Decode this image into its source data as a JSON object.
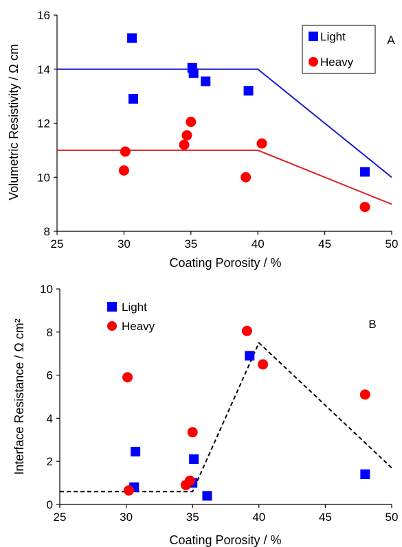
{
  "charts": [
    {
      "panel_label": "A",
      "xlabel": "Coating Porosity / %",
      "ylabel": "Volumetric Resistivity / Ω cm",
      "legend": {
        "placement": "top-right",
        "boxed": true
      },
      "x_ticks": [
        "25",
        "30",
        "35",
        "40",
        "45",
        "50"
      ],
      "y_ticks": [
        "8",
        "10",
        "12",
        "14",
        "16"
      ]
    },
    {
      "panel_label": "B",
      "xlabel": "Coating Porosity / %",
      "ylabel": "Interface Resistance / Ω cm²",
      "legend": {
        "placement": "top-left",
        "boxed": false
      },
      "x_ticks": [
        "25",
        "30",
        "35",
        "40",
        "45",
        "50"
      ],
      "y_ticks": [
        "0",
        "2",
        "4",
        "6",
        "8",
        "10"
      ]
    }
  ],
  "chart_data": [
    {
      "type": "scatter",
      "xlim": [
        25,
        50
      ],
      "ylim": [
        8,
        16
      ],
      "grid": false,
      "series": [
        {
          "name": "Light",
          "marker": "square",
          "color": "#0000ff",
          "points": [
            [
              30.6,
              15.15
            ],
            [
              30.7,
              12.9
            ],
            [
              35.1,
              14.05
            ],
            [
              35.2,
              13.85
            ],
            [
              36.1,
              13.55
            ],
            [
              39.3,
              13.2
            ],
            [
              48.0,
              10.2
            ]
          ]
        },
        {
          "name": "Heavy",
          "marker": "circle",
          "color": "#ff0000",
          "points": [
            [
              30.1,
              10.95
            ],
            [
              30.0,
              10.25
            ],
            [
              34.5,
              11.2
            ],
            [
              34.7,
              11.55
            ],
            [
              35.0,
              12.05
            ],
            [
              39.1,
              10.0
            ],
            [
              40.3,
              11.25
            ],
            [
              48.0,
              8.9
            ]
          ]
        }
      ],
      "lines": [
        {
          "color": "#1a1acc",
          "style": "solid",
          "points": [
            [
              25,
              14
            ],
            [
              40,
              14
            ],
            [
              50,
              10
            ]
          ]
        },
        {
          "color": "#dd2222",
          "style": "solid",
          "points": [
            [
              25,
              11
            ],
            [
              40,
              11
            ],
            [
              50,
              9
            ]
          ]
        }
      ]
    },
    {
      "type": "scatter",
      "xlim": [
        25,
        50
      ],
      "ylim": [
        0,
        10
      ],
      "grid": false,
      "series": [
        {
          "name": "Light",
          "marker": "square",
          "color": "#0000ff",
          "points": [
            [
              30.7,
              2.45
            ],
            [
              30.6,
              0.8
            ],
            [
              35.1,
              2.1
            ],
            [
              35.0,
              1.0
            ],
            [
              36.1,
              0.4
            ],
            [
              39.3,
              6.9
            ],
            [
              48.0,
              1.4
            ]
          ]
        },
        {
          "name": "Heavy",
          "marker": "circle",
          "color": "#ff0000",
          "points": [
            [
              30.1,
              5.9
            ],
            [
              30.2,
              0.65
            ],
            [
              34.5,
              0.9
            ],
            [
              34.8,
              1.1
            ],
            [
              35.0,
              3.35
            ],
            [
              39.1,
              8.05
            ],
            [
              40.3,
              6.5
            ],
            [
              48.0,
              5.1
            ]
          ]
        }
      ],
      "lines": [
        {
          "color": "#000000",
          "style": "dashed",
          "points": [
            [
              25,
              0.6
            ],
            [
              35,
              0.6
            ],
            [
              40,
              7.5
            ],
            [
              50,
              1.7
            ]
          ]
        }
      ]
    }
  ]
}
